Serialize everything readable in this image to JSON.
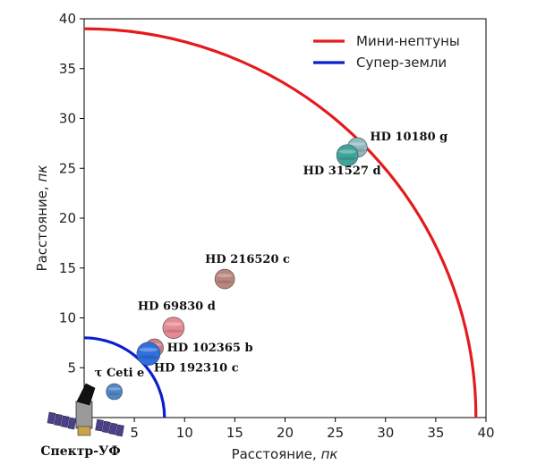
{
  "chart_data": {
    "type": "scatter",
    "title": "",
    "xlabel": "Расстояние, пк",
    "ylabel": "Расстояние, пк",
    "xlim": [
      0,
      40
    ],
    "ylim": [
      0,
      40
    ],
    "xticks": [
      5,
      10,
      15,
      20,
      25,
      30,
      35,
      40
    ],
    "yticks": [
      5,
      10,
      15,
      20,
      25,
      30,
      35,
      40
    ],
    "grid": false,
    "legend_position": "top-right",
    "series": [
      {
        "name": "Мини-нептуны",
        "type": "arc",
        "radius": 39,
        "color": "#e41a1c"
      },
      {
        "name": "Супер-земли",
        "type": "arc",
        "radius": 8,
        "color": "#0a1ecf"
      }
    ],
    "points": [
      {
        "label": "HD 10180 g",
        "x": 27.2,
        "y": 27.1,
        "color": "#8fb9bf"
      },
      {
        "label": "HD 31527 d",
        "x": 26.2,
        "y": 26.3,
        "color": "#3fa59a"
      },
      {
        "label": "HD 216520 c",
        "x": 14.0,
        "y": 13.9,
        "color": "#b9867d"
      },
      {
        "label": "HD 69830 d",
        "x": 8.9,
        "y": 9.0,
        "color": "#e58a93"
      },
      {
        "label": "HD 102365 b",
        "x": 7.0,
        "y": 7.0,
        "color": "#c77f8a"
      },
      {
        "label": "HD 192310 c",
        "x": 6.4,
        "y": 6.4,
        "color": "#2f6fe0"
      },
      {
        "label": "τ Ceti e",
        "x": 3.0,
        "y": 2.6,
        "color": "#4f87c9"
      }
    ],
    "observer": {
      "label": "Спектр-УФ",
      "x": 0,
      "y": 0
    }
  }
}
